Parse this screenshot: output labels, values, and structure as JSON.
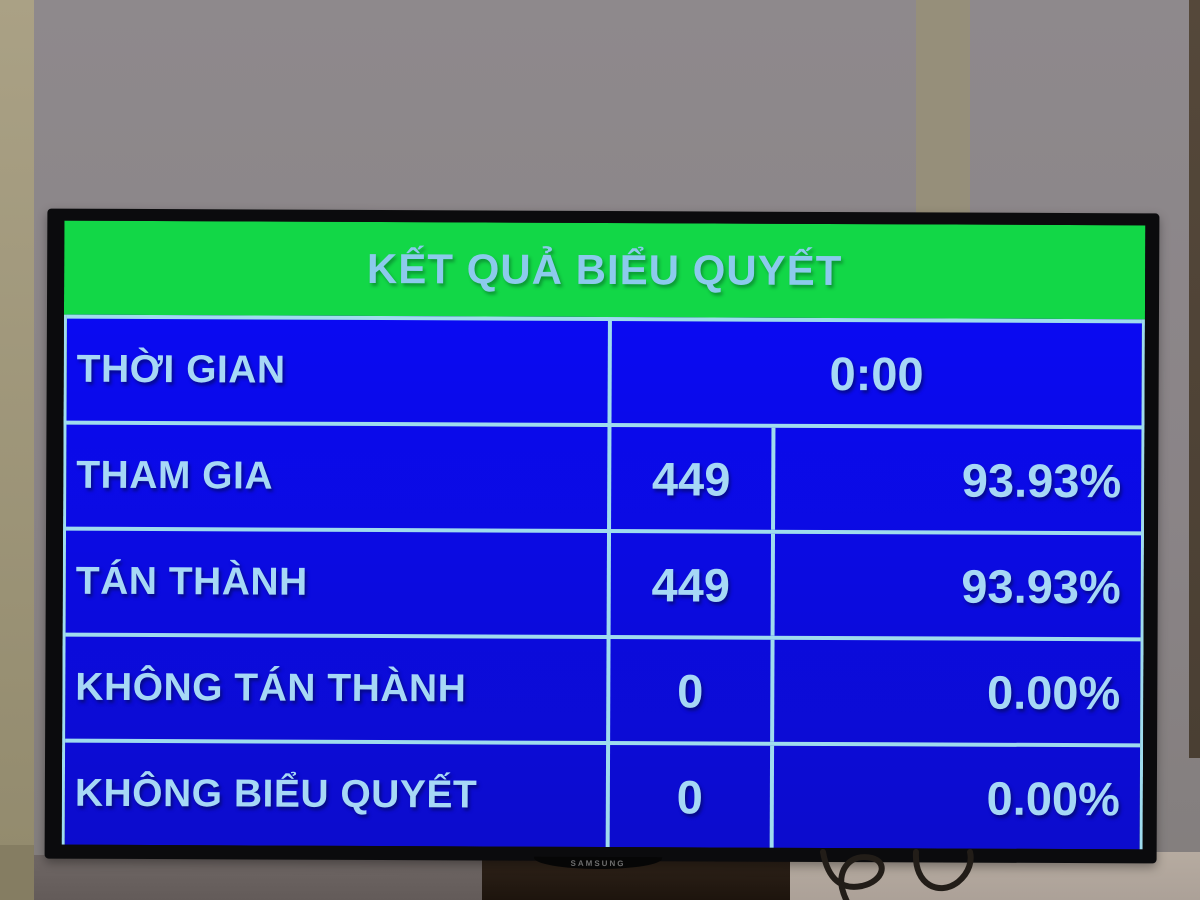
{
  "scene": {
    "brand": "SAMSUNG",
    "colors": {
      "header_green": "#12d747",
      "board_blue": "#0a0af2",
      "text_light_blue": "#a6d8f6",
      "divider_light_blue": "#9fdcee",
      "bezel_black": "#0b0b0d",
      "wall_gray": "#8a8487"
    }
  },
  "board": {
    "title": "KẾT QUẢ BIỂU QUYẾT",
    "rows": [
      {
        "label": "THỜI GIAN",
        "value": "0:00",
        "percent": null
      },
      {
        "label": "THAM GIA",
        "value": "449",
        "percent": "93.93%"
      },
      {
        "label": "TÁN THÀNH",
        "value": "449",
        "percent": "93.93%"
      },
      {
        "label": "KHÔNG TÁN THÀNH",
        "value": "0",
        "percent": "0.00%"
      },
      {
        "label": "KHÔNG BIỂU QUYẾT",
        "value": "0",
        "percent": "0.00%"
      }
    ]
  },
  "chart_data": {
    "type": "table",
    "title": "KẾT QUẢ BIỂU QUYẾT",
    "columns": [
      "label",
      "count",
      "percent"
    ],
    "rows": [
      [
        "THỜI GIAN",
        "0:00",
        ""
      ],
      [
        "THAM GIA",
        "449",
        "93.93%"
      ],
      [
        "TÁN THÀNH",
        "449",
        "93.93%"
      ],
      [
        "KHÔNG TÁN THÀNH",
        "0",
        "0.00%"
      ],
      [
        "KHÔNG BIỂU QUYẾT",
        "0",
        "0.00%"
      ]
    ],
    "notes": "voting result board; time 0:00; participants 449 (93.93%); approve 449 (93.93%); disapprove 0 (0.00%); abstain 0 (0.00%)"
  }
}
